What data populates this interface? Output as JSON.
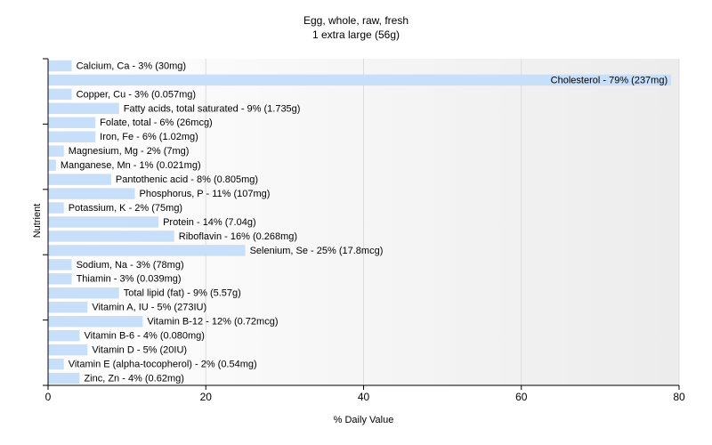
{
  "chart_data": {
    "type": "bar",
    "orientation": "horizontal",
    "title": "Egg, whole, raw, fresh",
    "subtitle": "1 extra large (56g)",
    "xlabel": "% Daily Value",
    "ylabel": "Nutrient",
    "xlim": [
      0,
      80
    ],
    "xticks": [
      0,
      20,
      40,
      60,
      80
    ],
    "grid": true,
    "bar_color": "#c7dff8",
    "categories": [
      "Calcium, Ca",
      "Cholesterol",
      "Copper, Cu",
      "Fatty acids, total saturated",
      "Folate, total",
      "Iron, Fe",
      "Magnesium, Mg",
      "Manganese, Mn",
      "Pantothenic acid",
      "Phosphorus, P",
      "Potassium, K",
      "Protein",
      "Riboflavin",
      "Selenium, Se",
      "Sodium, Na",
      "Thiamin",
      "Total lipid (fat)",
      "Vitamin A, IU",
      "Vitamin B-12",
      "Vitamin B-6",
      "Vitamin D",
      "Vitamin E (alpha-tocopherol)",
      "Zinc, Zn"
    ],
    "values": [
      3,
      79,
      3,
      9,
      6,
      6,
      2,
      1,
      8,
      11,
      2,
      14,
      16,
      25,
      3,
      3,
      9,
      5,
      12,
      4,
      5,
      2,
      4
    ],
    "labels": [
      "Calcium, Ca - 3% (30mg)",
      "Cholesterol - 79% (237mg)",
      "Copper, Cu - 3% (0.057mg)",
      "Fatty acids, total saturated - 9% (1.735g)",
      "Folate, total - 6% (26mcg)",
      "Iron, Fe - 6% (1.02mg)",
      "Magnesium, Mg - 2% (7mg)",
      "Manganese, Mn - 1% (0.021mg)",
      "Pantothenic acid - 8% (0.805mg)",
      "Phosphorus, P - 11% (107mg)",
      "Potassium, K - 2% (75mg)",
      "Protein - 14% (7.04g)",
      "Riboflavin - 16% (0.268mg)",
      "Selenium, Se - 25% (17.8mcg)",
      "Sodium, Na - 3% (78mg)",
      "Thiamin - 3% (0.039mg)",
      "Total lipid (fat) - 9% (5.57g)",
      "Vitamin A, IU - 5% (273IU)",
      "Vitamin B-12 - 12% (0.72mcg)",
      "Vitamin B-6 - 4% (0.080mg)",
      "Vitamin D - 5% (20IU)",
      "Vitamin E (alpha-tocopherol) - 2% (0.54mg)",
      "Zinc, Zn - 4% (0.62mg)"
    ]
  }
}
